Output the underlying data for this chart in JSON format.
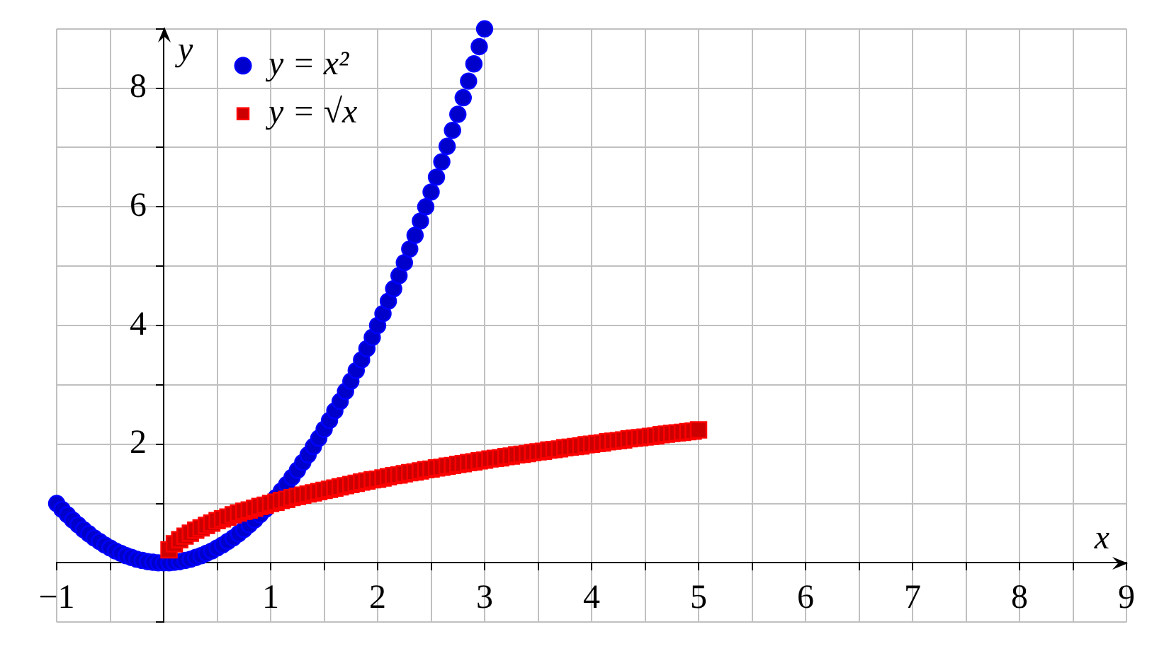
{
  "chart_data": {
    "type": "scatter",
    "xlabel": "x",
    "ylabel": "y",
    "xlim": [
      -1,
      9
    ],
    "ylim": [
      -1,
      9
    ],
    "xticks": [
      {
        "value": -1,
        "label": "−1"
      },
      {
        "value": -0.5,
        "label": null
      },
      {
        "value": 0,
        "label": null
      },
      {
        "value": 0.5,
        "label": null
      },
      1,
      {
        "value": 1.5,
        "label": null
      },
      2,
      {
        "value": 2.5,
        "label": null
      },
      3,
      {
        "value": 3.5,
        "label": null
      },
      4,
      {
        "value": 4.5,
        "label": null
      },
      5,
      {
        "value": 5.5,
        "label": null
      },
      6,
      {
        "value": 6.5,
        "label": null
      },
      7,
      {
        "value": 7.5,
        "label": null
      },
      8,
      {
        "value": 8.5,
        "label": null
      },
      9
    ],
    "yticks": [
      {
        "value": -1,
        "label": null
      },
      {
        "value": 0,
        "label": null
      },
      {
        "value": 1,
        "label": null
      },
      2,
      {
        "value": 3,
        "label": null
      },
      4,
      {
        "value": 5,
        "label": null
      },
      6,
      {
        "value": 7,
        "label": null
      },
      8,
      {
        "value": 9,
        "label": null
      }
    ],
    "grid": true,
    "legend": "top left",
    "series": [
      {
        "name": "y = x²",
        "color": "#0000cc",
        "marker": "circle",
        "x": [
          -1,
          -0.95,
          -0.9,
          -0.85,
          -0.8,
          -0.75,
          -0.7,
          -0.65,
          -0.6,
          -0.55,
          -0.5,
          -0.45,
          -0.4,
          -0.35,
          -0.3,
          -0.25,
          -0.2,
          -0.15,
          -0.1,
          -0.05,
          0,
          0.05,
          0.1,
          0.15,
          0.2,
          0.25,
          0.3,
          0.35,
          0.4,
          0.45,
          0.5,
          0.55,
          0.6,
          0.65,
          0.7,
          0.75,
          0.8,
          0.85,
          0.9,
          0.95,
          1,
          1.05,
          1.1,
          1.15,
          1.2,
          1.25,
          1.3,
          1.35,
          1.4,
          1.45,
          1.5,
          1.55,
          1.6,
          1.65,
          1.7,
          1.75,
          1.8,
          1.85,
          1.9,
          1.95,
          2,
          2.05,
          2.1,
          2.15,
          2.2,
          2.25,
          2.3,
          2.35,
          2.4,
          2.45,
          2.5,
          2.55,
          2.6,
          2.65,
          2.7,
          2.75,
          2.8,
          2.85,
          2.9,
          2.95,
          3
        ],
        "values": [
          1,
          0.9,
          0.81,
          0.72,
          0.64,
          0.56,
          0.49,
          0.42,
          0.36,
          0.3,
          0.25,
          0.2,
          0.16,
          0.12,
          0.09,
          0.06,
          0.04,
          0.02,
          0.01,
          0,
          0,
          0,
          0.01,
          0.02,
          0.04,
          0.06,
          0.09,
          0.12,
          0.16,
          0.2,
          0.25,
          0.3,
          0.36,
          0.42,
          0.49,
          0.56,
          0.64,
          0.72,
          0.81,
          0.9,
          null,
          1.1,
          1.21,
          1.32,
          1.44,
          1.56,
          1.69,
          1.82,
          1.96,
          2.1,
          2.25,
          2.4,
          2.56,
          2.72,
          2.89,
          3.06,
          3.24,
          3.42,
          3.61,
          3.8,
          4,
          4.2,
          4.41,
          4.62,
          4.84,
          5.06,
          5.29,
          5.52,
          5.76,
          6,
          6.25,
          6.5,
          6.76,
          7.02,
          7.29,
          7.56,
          7.84,
          8.12,
          8.41,
          8.7,
          9
        ]
      },
      {
        "name": "y = √x",
        "color": "#cc0000",
        "marker": "square",
        "x": [
          0.05,
          0.1,
          0.15,
          0.2,
          0.25,
          0.3,
          0.35,
          0.4,
          0.45,
          0.5,
          0.55,
          0.6,
          0.65,
          0.7,
          0.75,
          0.8,
          0.85,
          0.9,
          0.95,
          1,
          1.05,
          1.1,
          1.15,
          1.2,
          1.25,
          1.3,
          1.35,
          1.4,
          1.45,
          1.5,
          1.55,
          1.6,
          1.65,
          1.7,
          1.75,
          1.8,
          1.85,
          1.9,
          1.95,
          2,
          2.05,
          2.1,
          2.15,
          2.2,
          2.25,
          2.3,
          2.35,
          2.4,
          2.45,
          2.5,
          2.55,
          2.6,
          2.65,
          2.7,
          2.75,
          2.8,
          2.85,
          2.9,
          2.95,
          3,
          3.05,
          3.1,
          3.15,
          3.2,
          3.25,
          3.3,
          3.35,
          3.4,
          3.45,
          3.5,
          3.55,
          3.6,
          3.65,
          3.7,
          3.75,
          3.8,
          3.85,
          3.9,
          3.95,
          4,
          4.05,
          4.1,
          4.15,
          4.2,
          4.25,
          4.3,
          4.35,
          4.4,
          4.45,
          4.5,
          4.55,
          4.6,
          4.65,
          4.7,
          4.75,
          4.8,
          4.85,
          4.9,
          4.95,
          5
        ],
        "values": [
          0.22,
          0.32,
          0.39,
          0.45,
          0.5,
          0.55,
          0.59,
          0.63,
          0.67,
          0.71,
          0.74,
          0.77,
          0.81,
          0.84,
          0.87,
          0.89,
          0.92,
          0.95,
          0.97,
          1,
          1.02,
          1.05,
          1.07,
          1.1,
          1.12,
          1.14,
          1.16,
          1.18,
          1.2,
          1.22,
          1.24,
          1.26,
          1.28,
          1.3,
          1.32,
          1.34,
          1.36,
          1.38,
          1.4,
          1.41,
          1.43,
          1.45,
          1.47,
          1.48,
          1.5,
          1.52,
          1.53,
          1.55,
          1.57,
          1.58,
          1.6,
          1.61,
          1.63,
          1.64,
          1.66,
          1.67,
          1.69,
          1.7,
          1.72,
          1.73,
          1.75,
          1.76,
          1.77,
          1.79,
          1.8,
          1.82,
          1.83,
          1.84,
          1.86,
          1.87,
          1.88,
          1.9,
          1.91,
          1.92,
          1.94,
          1.95,
          1.96,
          1.97,
          1.99,
          2,
          2.01,
          2.02,
          2.04,
          2.05,
          2.06,
          2.07,
          2.09,
          2.1,
          2.11,
          2.12,
          2.13,
          2.14,
          2.16,
          2.17,
          2.18,
          2.19,
          2.2,
          2.21,
          2.22,
          2.24
        ]
      }
    ]
  }
}
